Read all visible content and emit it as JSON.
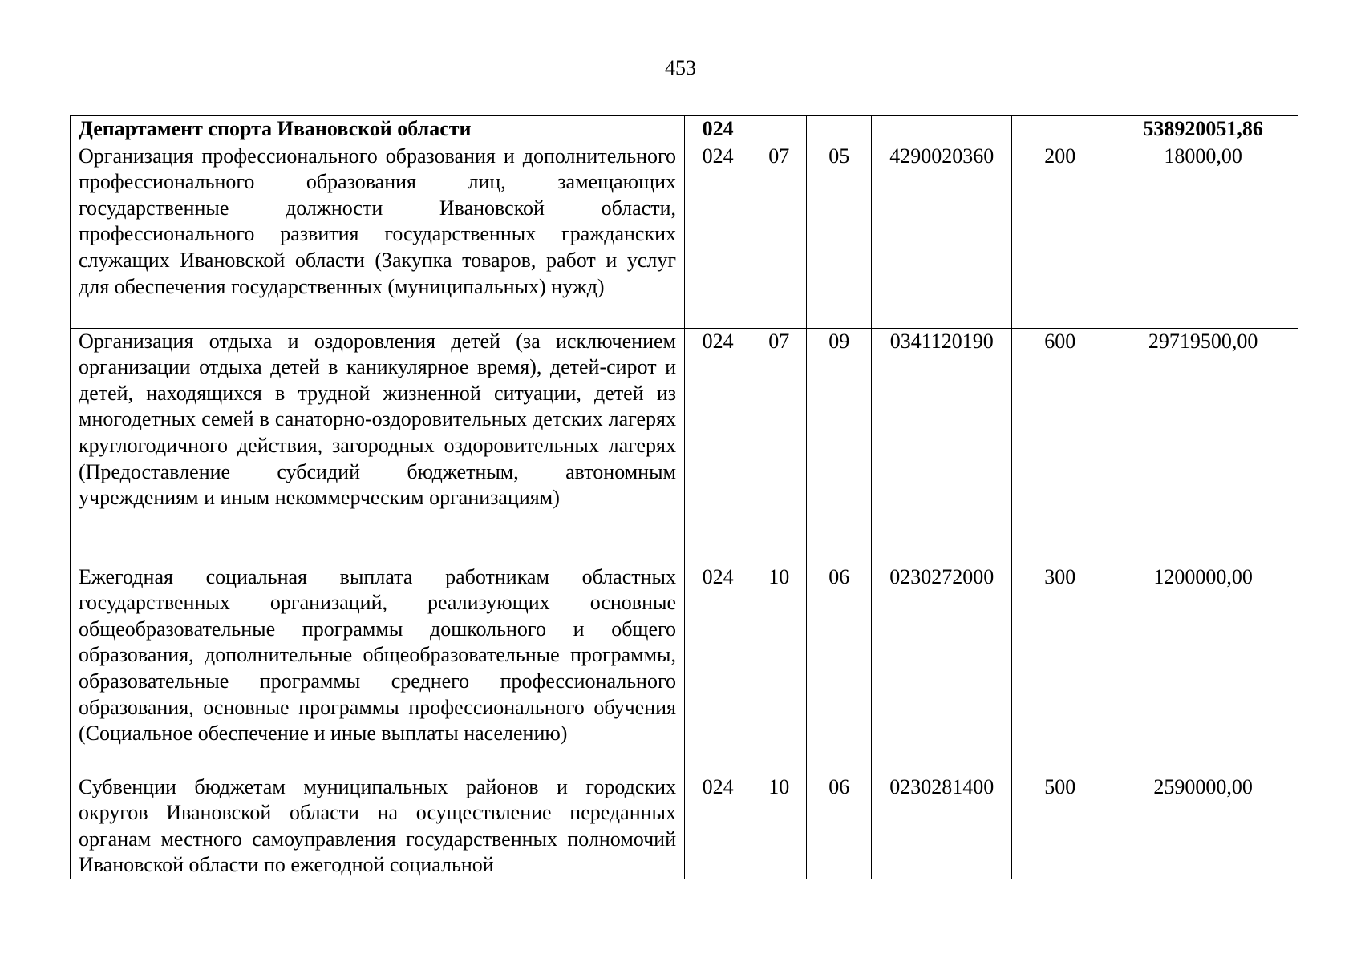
{
  "page_number": "453",
  "table": {
    "header_row": {
      "description": "Департамент спорта Ивановской области",
      "ministry": "024",
      "section": "",
      "subsection": "",
      "target": "",
      "expense_type": "",
      "amount": "538920051,86"
    },
    "rows": [
      {
        "description": "Организация профессионального образования и дополнительного профессионального образования лиц, замещающих государственные должности Ивановской области, профессионального развития государственных гражданских служащих Ивановской области (Закупка товаров, работ и услуг для обеспечения государственных (муниципальных) нужд)",
        "ministry": "024",
        "section": "07",
        "subsection": "05",
        "target": "4290020360",
        "expense_type": "200",
        "amount": "18000,00"
      },
      {
        "description": "Организация отдыха и оздоровления детей (за исключением организации отдыха детей в каникулярное время), детей-сирот и детей, находящихся в трудной жизненной ситуации, детей из многодетных семей в санаторно-оздоровительных детских лагерях круглогодичного действия, загородных оздоровительных лагерях (Предоставление субсидий бюджетным, автономным учреждениям и иным некоммерческим организациям)",
        "ministry": "024",
        "section": "07",
        "subsection": "09",
        "target": "0341120190",
        "expense_type": "600",
        "amount": "29719500,00"
      },
      {
        "description": "Ежегодная социальная выплата работникам областных государственных организаций, реализующих основные общеобразовательные программы дошкольного и общего образования, дополнительные общеобразовательные программы, образовательные программы среднего профессионального образования, основные программы профессионального обучения (Социальное обеспечение и иные выплаты населению)",
        "ministry": "024",
        "section": "10",
        "subsection": "06",
        "target": "0230272000",
        "expense_type": "300",
        "amount": "1200000,00"
      },
      {
        "description": "Субвенции бюджетам муниципальных районов и городских округов Ивановской области на осуществление переданных органам местного самоуправления государственных полномочий Ивановской области по ежегодной социальной",
        "ministry": "024",
        "section": "10",
        "subsection": "06",
        "target": "0230281400",
        "expense_type": "500",
        "amount": "2590000,00"
      }
    ]
  }
}
